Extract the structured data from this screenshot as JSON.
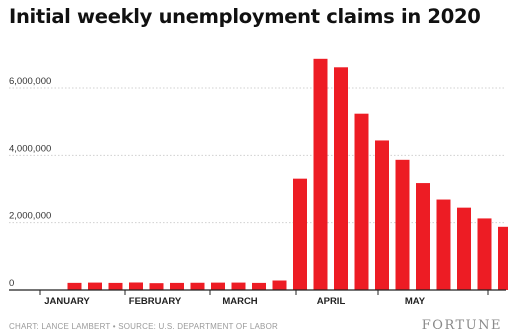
{
  "chart_data": {
    "type": "bar",
    "title": "Initial weekly unemployment claims in 2020",
    "xlabel": "",
    "ylabel": "",
    "ylim": [
      0,
      7000000
    ],
    "yticks": [
      0,
      2000000,
      4000000,
      6000000
    ],
    "ytick_labels": [
      "0",
      "2,000,000",
      "4,000,000",
      "6,000,000"
    ],
    "month_labels": [
      "JANUARY",
      "FEBRUARY",
      "MARCH",
      "APRIL",
      "MAY"
    ],
    "values": [
      212000,
      220000,
      211000,
      223000,
      203000,
      211000,
      215000,
      219000,
      220000,
      211000,
      282000,
      3307000,
      6867000,
      6615000,
      5237000,
      4442000,
      3867000,
      3176000,
      2687000,
      2446000,
      2126000,
      1877000
    ],
    "bar_color": "#ed1c24",
    "grid": true,
    "source": "CHART: LANCE LAMBERT • SOURCE: U.S. DEPARTMENT OF LABOR",
    "logo": "FORTUNE"
  }
}
